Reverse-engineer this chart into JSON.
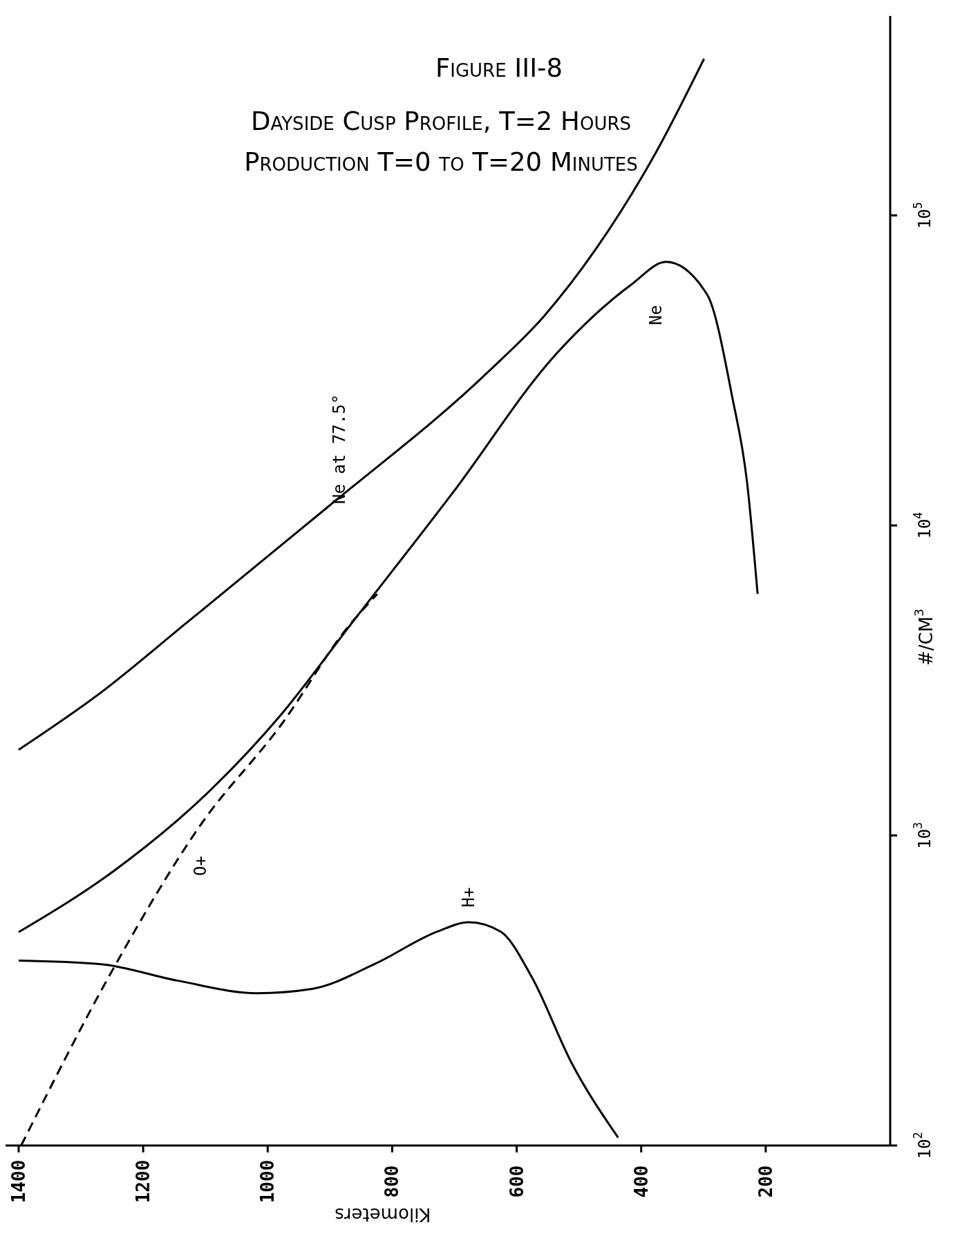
{
  "chart_data": {
    "type": "line",
    "title": "Figure III-8",
    "subtitle": "Dayside Cusp Profile, T=2 Hours",
    "annotations": [
      "Production T=0 to T=20 Minutes"
    ],
    "xlabel": "Kilometers",
    "ylabel": "#/CM$^{3}$",
    "xlim": [
      1430,
      0
    ],
    "xticks": [
      1400,
      1200,
      1000,
      800,
      600,
      400,
      200
    ],
    "ylim": [
      100,
      440000
    ],
    "yticks": [
      {
        "value": 100,
        "label": "10$^{2}$"
      },
      {
        "value": 1000,
        "label": "10$^{3}$"
      },
      {
        "value": 10000,
        "label": "10$^{4}$"
      },
      {
        "value": 100000,
        "label": "10$^{5}$"
      }
    ],
    "log": "y",
    "grid": false,
    "legend": false,
    "marker": "none",
    "series": [
      {
        "name": "Ne at 77.5°",
        "color": "#000000",
        "line_style": "solid",
        "x": [
          1400,
          1271,
          1131,
          905,
          645,
          555,
          473,
          376,
          299
        ],
        "values": [
          1890,
          2860,
          4840,
          11400,
          31400,
          47600,
          77800,
          160000,
          320000
        ]
      },
      {
        "name": "Ne",
        "color": "#000000",
        "line_style": "solid",
        "x": [
          1400,
          1247,
          1092,
          978,
          865,
          702,
          539,
          416,
          360,
          294,
          254,
          230,
          213
        ],
        "values": [
          488,
          769,
          1400,
          2460,
          4840,
          12800,
          35300,
          59800,
          70800,
          55500,
          26100,
          13800,
          6010
        ]
      },
      {
        "name": "O+",
        "color": "#000000",
        "line_style": "dashed",
        "x": [
          1396,
          1247,
          1108,
          978,
          872,
          824
        ],
        "values": [
          100,
          375,
          1080,
          2280,
          4680,
          6010
        ]
      },
      {
        "name": "H+",
        "color": "#000000",
        "line_style": "solid",
        "x": [
          1400,
          1270,
          1144,
          1017,
          929,
          828,
          727,
          677,
          626,
          576,
          512,
          437
        ],
        "values": [
          395,
          385,
          340,
          310,
          320,
          385,
          490,
          525,
          490,
          350,
          185,
          106
        ]
      }
    ]
  }
}
